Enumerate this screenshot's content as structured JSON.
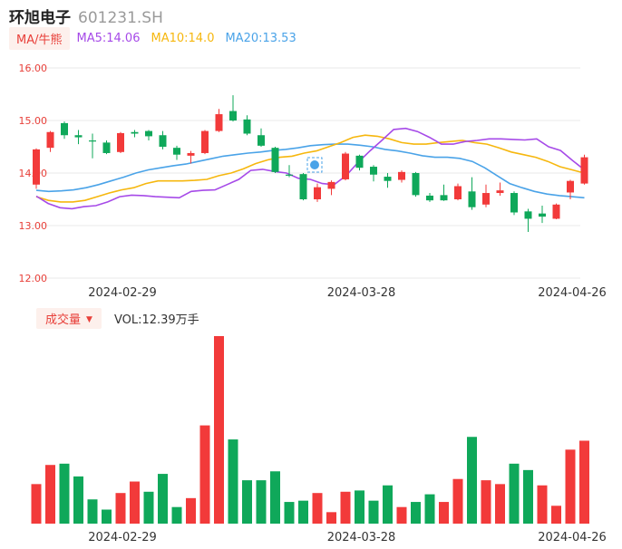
{
  "header": {
    "name": "环旭电子",
    "code": "601231.SH"
  },
  "legend": {
    "tag": "MA/牛熊",
    "ma5": "MA5:14.06",
    "ma10": "MA10:14.0",
    "ma20": "MA20:13.53"
  },
  "volume_legend": {
    "tag": "成交量",
    "caret": "▼",
    "text": "VOL:12.39万手"
  },
  "colors": {
    "up": "#f23a3a",
    "down": "#0fa85a",
    "ma5": "#a64ae8",
    "ma10": "#f6b70e",
    "ma20": "#4aa3e8",
    "grid": "#e8e8e8",
    "axis_label": "#e8403a",
    "date_label": "#333333"
  },
  "chart_data": [
    {
      "type": "candlestick",
      "ylim": [
        12.0,
        16.0
      ],
      "y_ticks": [
        "16.00",
        "15.00",
        "14.00",
        "13.00",
        "12.00"
      ],
      "x_tick_labels": [
        "2024-02-29",
        "2024-03-28",
        "2024-04-26"
      ],
      "x_tick_index": [
        6,
        23,
        38
      ],
      "candles": [
        {
          "o": 13.78,
          "c": 14.45,
          "h": 14.47,
          "l": 13.7
        },
        {
          "o": 14.48,
          "c": 14.78,
          "h": 14.8,
          "l": 14.4
        },
        {
          "o": 14.95,
          "c": 14.72,
          "h": 14.98,
          "l": 14.65
        },
        {
          "o": 14.72,
          "c": 14.68,
          "h": 14.82,
          "l": 14.55
        },
        {
          "o": 14.62,
          "c": 14.6,
          "h": 14.75,
          "l": 14.28
        },
        {
          "o": 14.58,
          "c": 14.38,
          "h": 14.62,
          "l": 14.36
        },
        {
          "o": 14.4,
          "c": 14.76,
          "h": 14.78,
          "l": 14.38
        },
        {
          "o": 14.78,
          "c": 14.75,
          "h": 14.82,
          "l": 14.68
        },
        {
          "o": 14.8,
          "c": 14.7,
          "h": 14.82,
          "l": 14.62
        },
        {
          "o": 14.72,
          "c": 14.5,
          "h": 14.8,
          "l": 14.45
        },
        {
          "o": 14.48,
          "c": 14.35,
          "h": 14.52,
          "l": 14.25
        },
        {
          "o": 14.33,
          "c": 14.38,
          "h": 14.42,
          "l": 14.18
        },
        {
          "o": 14.38,
          "c": 14.8,
          "h": 14.82,
          "l": 14.36
        },
        {
          "o": 14.8,
          "c": 15.12,
          "h": 15.22,
          "l": 14.78
        },
        {
          "o": 15.18,
          "c": 15.0,
          "h": 15.48,
          "l": 14.98
        },
        {
          "o": 15.02,
          "c": 14.75,
          "h": 15.1,
          "l": 14.72
        },
        {
          "o": 14.72,
          "c": 14.52,
          "h": 14.85,
          "l": 14.5
        },
        {
          "o": 14.48,
          "c": 14.02,
          "h": 14.5,
          "l": 14.0
        },
        {
          "o": 13.97,
          "c": 13.95,
          "h": 14.15,
          "l": 13.92
        },
        {
          "o": 13.98,
          "c": 13.5,
          "h": 14.0,
          "l": 13.48
        },
        {
          "o": 13.5,
          "c": 13.73,
          "h": 13.8,
          "l": 13.45
        },
        {
          "o": 13.7,
          "c": 13.83,
          "h": 13.86,
          "l": 13.58
        },
        {
          "o": 13.88,
          "c": 14.37,
          "h": 14.4,
          "l": 13.86
        },
        {
          "o": 14.33,
          "c": 14.1,
          "h": 14.35,
          "l": 14.05
        },
        {
          "o": 14.12,
          "c": 13.97,
          "h": 14.15,
          "l": 13.84
        },
        {
          "o": 13.93,
          "c": 13.85,
          "h": 14.0,
          "l": 13.72
        },
        {
          "o": 13.87,
          "c": 14.02,
          "h": 14.05,
          "l": 13.82
        },
        {
          "o": 14.0,
          "c": 13.58,
          "h": 14.02,
          "l": 13.55
        },
        {
          "o": 13.57,
          "c": 13.48,
          "h": 13.62,
          "l": 13.45
        },
        {
          "o": 13.58,
          "c": 13.48,
          "h": 13.78,
          "l": 13.47
        },
        {
          "o": 13.5,
          "c": 13.75,
          "h": 13.8,
          "l": 13.48
        },
        {
          "o": 13.65,
          "c": 13.35,
          "h": 13.92,
          "l": 13.3
        },
        {
          "o": 13.4,
          "c": 13.62,
          "h": 13.78,
          "l": 13.35
        },
        {
          "o": 13.62,
          "c": 13.67,
          "h": 13.82,
          "l": 13.57
        },
        {
          "o": 13.62,
          "c": 13.25,
          "h": 13.65,
          "l": 13.2
        },
        {
          "o": 13.27,
          "c": 13.13,
          "h": 13.32,
          "l": 12.88
        },
        {
          "o": 13.23,
          "c": 13.17,
          "h": 13.38,
          "l": 13.05
        },
        {
          "o": 13.13,
          "c": 13.4,
          "h": 13.42,
          "l": 13.12
        },
        {
          "o": 13.63,
          "c": 13.85,
          "h": 13.87,
          "l": 13.5
        },
        {
          "o": 13.8,
          "c": 14.3,
          "h": 14.35,
          "l": 13.78
        }
      ],
      "ma5": [
        13.56,
        13.42,
        13.34,
        13.32,
        13.36,
        13.38,
        13.45,
        13.55,
        13.58,
        13.57,
        13.55,
        13.54,
        13.53,
        13.65,
        13.67,
        13.68,
        13.78,
        13.88,
        14.05,
        14.07,
        14.03,
        14.0,
        13.9,
        13.88,
        13.8,
        13.78,
        13.95,
        14.2,
        14.42,
        14.62,
        14.83,
        14.85,
        14.79,
        14.68,
        14.55,
        14.55,
        14.6,
        14.62,
        14.65,
        14.65,
        14.64,
        14.63,
        14.65,
        14.5,
        14.43,
        14.24,
        14.06
      ],
      "ma10": [
        13.55,
        13.48,
        13.45,
        13.45,
        13.48,
        13.55,
        13.62,
        13.68,
        13.72,
        13.8,
        13.85,
        13.85,
        13.85,
        13.86,
        13.88,
        13.95,
        14.0,
        14.08,
        14.18,
        14.25,
        14.3,
        14.32,
        14.38,
        14.42,
        14.5,
        14.58,
        14.68,
        14.72,
        14.7,
        14.65,
        14.58,
        14.55,
        14.55,
        14.58,
        14.6,
        14.62,
        14.58,
        14.55,
        14.48,
        14.4,
        14.35,
        14.3,
        14.22,
        14.12,
        14.06,
        14.0
      ],
      "ma20": [
        13.67,
        13.65,
        13.66,
        13.68,
        13.72,
        13.78,
        13.85,
        13.92,
        14.0,
        14.06,
        14.1,
        14.14,
        14.17,
        14.22,
        14.27,
        14.32,
        14.35,
        14.38,
        14.4,
        14.43,
        14.45,
        14.48,
        14.52,
        14.54,
        14.55,
        14.55,
        14.53,
        14.5,
        14.45,
        14.42,
        14.38,
        14.33,
        14.3,
        14.3,
        14.28,
        14.22,
        14.1,
        13.95,
        13.8,
        13.72,
        13.65,
        13.6,
        13.57,
        13.55,
        13.53
      ]
    },
    {
      "type": "bar",
      "title": "",
      "values": [
        31,
        46,
        47,
        37,
        19,
        11,
        24,
        33,
        25,
        39,
        13,
        20,
        77,
        147,
        66,
        34,
        34,
        41,
        17,
        18,
        24,
        9,
        25,
        26,
        18,
        30,
        13,
        17,
        23,
        17,
        35,
        68,
        34,
        31,
        47,
        42,
        30,
        14,
        58,
        65
      ],
      "directions": [
        "u",
        "u",
        "d",
        "d",
        "d",
        "d",
        "u",
        "u",
        "d",
        "d",
        "d",
        "u",
        "u",
        "u",
        "d",
        "d",
        "d",
        "d",
        "d",
        "d",
        "u",
        "u",
        "u",
        "d",
        "d",
        "d",
        "u",
        "d",
        "d",
        "u",
        "u",
        "d",
        "u",
        "u",
        "d",
        "d",
        "u",
        "u",
        "u",
        "u"
      ]
    }
  ]
}
